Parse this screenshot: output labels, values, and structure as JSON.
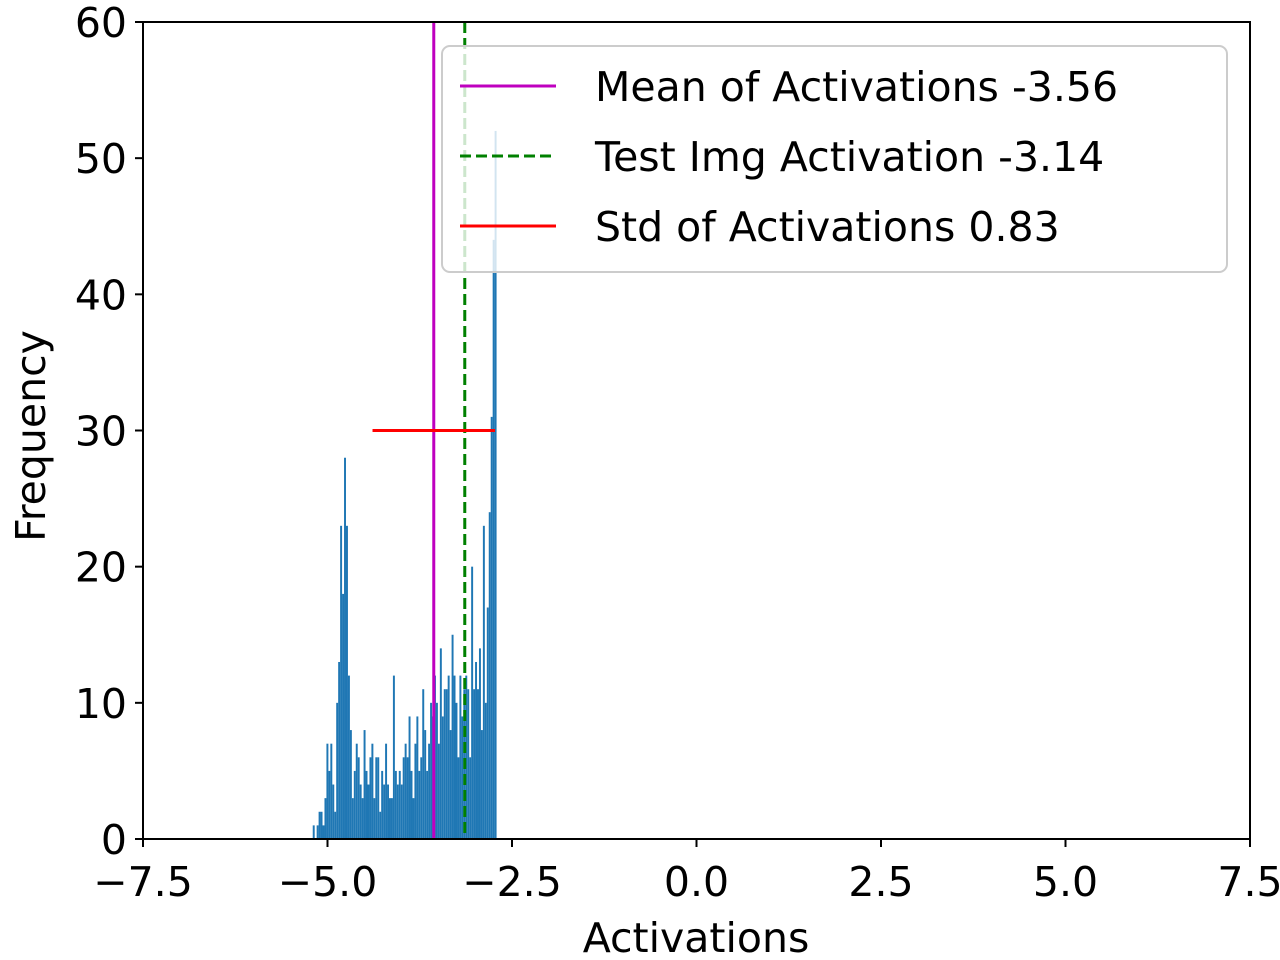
{
  "chart_data": {
    "type": "histogram",
    "xlabel": "Activations",
    "ylabel": "Frequency",
    "xlim": [
      -7.5,
      7.5
    ],
    "ylim": [
      0,
      60
    ],
    "xticks": [
      -7.5,
      -5.0,
      -2.5,
      0.0,
      2.5,
      5.0,
      7.5
    ],
    "xtick_labels": [
      "−7.5",
      "−5.0",
      "−2.5",
      "0.0",
      "2.5",
      "5.0",
      "7.5"
    ],
    "yticks": [
      0,
      10,
      20,
      30,
      40,
      50,
      60
    ],
    "ytick_labels": [
      "0",
      "10",
      "20",
      "30",
      "40",
      "50",
      "60"
    ],
    "bar_color": "#1f77b4",
    "bins": {
      "start": -5.2,
      "width": 0.0265,
      "counts": [
        1,
        0,
        1,
        2,
        2,
        1,
        3,
        7,
        5,
        7,
        4,
        2,
        10,
        13,
        23,
        18,
        28,
        23,
        12,
        8,
        3,
        5,
        7,
        6,
        4,
        3,
        8,
        5,
        4,
        6,
        7,
        3,
        6,
        6,
        2,
        5,
        4,
        7,
        4,
        3,
        3,
        12,
        5,
        4,
        5,
        4,
        6,
        7,
        6,
        9,
        5,
        3,
        7,
        9,
        5,
        6,
        11,
        8,
        5,
        7,
        10,
        9,
        12,
        10,
        7,
        14,
        9,
        11,
        11,
        12,
        8,
        15,
        12,
        10,
        6,
        12,
        9,
        11,
        12,
        11,
        6,
        20,
        11,
        13,
        11,
        14,
        8,
        23,
        10,
        17,
        24,
        31,
        44,
        52
      ]
    },
    "mean_line": {
      "x": -3.56,
      "color": "#bf00bf",
      "style": "solid"
    },
    "test_line": {
      "x": -3.14,
      "color": "#008000",
      "style": "dashed"
    },
    "std_bar": {
      "center": -3.56,
      "half_width": 0.83,
      "y": 30,
      "color": "#ff0000"
    },
    "legend": {
      "position": "upper right",
      "entries": [
        {
          "label": "Mean of Activations -3.56",
          "color": "#bf00bf",
          "style": "solid"
        },
        {
          "label": "Test Img Activation -3.14",
          "color": "#008000",
          "style": "dashed"
        },
        {
          "label": "Std of Activations 0.83",
          "color": "#ff0000",
          "style": "solid"
        }
      ]
    }
  }
}
